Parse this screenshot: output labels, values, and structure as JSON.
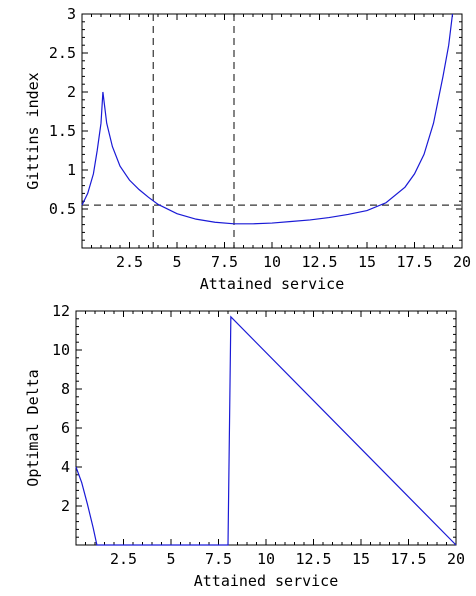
{
  "chart_data": [
    {
      "type": "line",
      "title": "",
      "xlabel": "Attained service",
      "ylabel": "Gittins index",
      "xlim": [
        0,
        20
      ],
      "ylim": [
        0,
        3
      ],
      "xticks": [
        2.5,
        5,
        7.5,
        10,
        12.5,
        15,
        17.5,
        20
      ],
      "xtick_labels": [
        "2.5",
        "5",
        "7.5",
        "10",
        "12.5",
        "15",
        "17.5",
        "20"
      ],
      "yticks": [
        0.5,
        1,
        1.5,
        2,
        2.5,
        3
      ],
      "ytick_labels": [
        "0.5",
        "1",
        "1.5",
        "2",
        "2.5",
        "3"
      ],
      "color": "#1a1ad6",
      "series": [
        {
          "x": [
            0,
            0.3,
            0.6,
            0.8,
            1.0,
            1.1,
            1.3,
            1.6,
            2.0,
            2.5,
            3.0,
            3.5,
            4.0,
            5.0,
            6.0,
            7.0,
            8.0,
            9.0,
            10.0,
            11.0,
            12.0,
            13.0,
            14.0,
            15.0,
            16.0,
            17.0,
            17.5,
            18.0,
            18.5,
            19.0,
            19.3,
            19.5
          ],
          "y": [
            0.55,
            0.7,
            0.95,
            1.25,
            1.6,
            2.0,
            1.6,
            1.3,
            1.05,
            0.87,
            0.75,
            0.65,
            0.56,
            0.44,
            0.37,
            0.33,
            0.31,
            0.31,
            0.32,
            0.34,
            0.36,
            0.39,
            0.43,
            0.48,
            0.58,
            0.78,
            0.95,
            1.2,
            1.6,
            2.2,
            2.6,
            3.0
          ]
        }
      ],
      "hlines": [
        0.55
      ],
      "vlines": [
        3.75,
        8.0
      ]
    },
    {
      "type": "line",
      "title": "",
      "xlabel": "Attained service",
      "ylabel": "Optimal Delta",
      "xlim": [
        0,
        20
      ],
      "ylim": [
        0,
        12
      ],
      "xticks": [
        2.5,
        5,
        7.5,
        10,
        12.5,
        15,
        17.5,
        20
      ],
      "xtick_labels": [
        "2.5",
        "5",
        "7.5",
        "10",
        "12.5",
        "15",
        "17.5",
        "20"
      ],
      "yticks": [
        2,
        4,
        6,
        8,
        10,
        12
      ],
      "ytick_labels": [
        "2",
        "4",
        "6",
        "8",
        "10",
        "12"
      ],
      "color": "#1a1ad6",
      "series": [
        {
          "x": [
            0,
            0.3,
            0.6,
            0.9,
            1.1,
            8.0,
            8.0,
            8.15,
            20.0
          ],
          "y": [
            4.0,
            3.2,
            2.1,
            0.9,
            0,
            0,
            0,
            11.7,
            0
          ]
        }
      ]
    }
  ]
}
